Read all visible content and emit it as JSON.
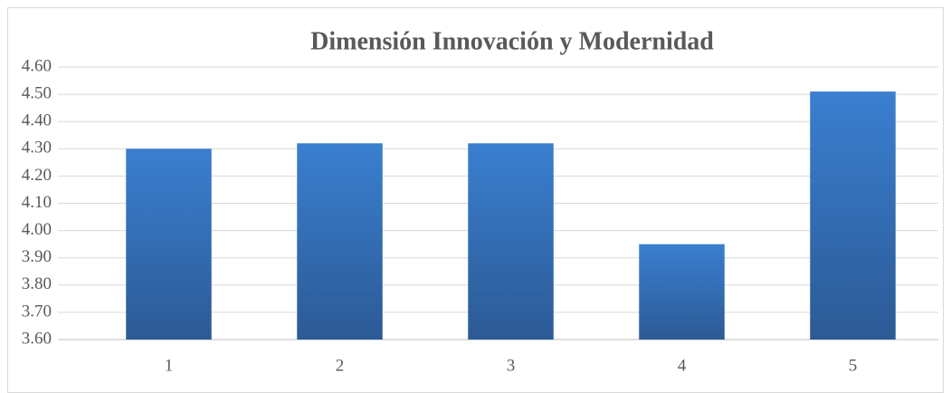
{
  "chart_data": {
    "type": "bar",
    "title": "Dimensión Innovación y Modernidad",
    "categories": [
      "1",
      "2",
      "3",
      "4",
      "5"
    ],
    "values": [
      4.3,
      4.32,
      4.32,
      3.95,
      4.51
    ],
    "color": "#3a7fd0",
    "ylim": [
      3.6,
      4.6
    ],
    "yticks": [
      {
        "value": 3.6,
        "label": "3.60"
      },
      {
        "value": 3.7,
        "label": "3.70"
      },
      {
        "value": 3.8,
        "label": "3.80"
      },
      {
        "value": 3.9,
        "label": "3.90"
      },
      {
        "value": 4.0,
        "label": "4.00"
      },
      {
        "value": 4.1,
        "label": "4.10"
      },
      {
        "value": 4.2,
        "label": "4.20"
      },
      {
        "value": 4.3,
        "label": "4.30"
      },
      {
        "value": 4.4,
        "label": "4.40"
      },
      {
        "value": 4.5,
        "label": "4.50"
      },
      {
        "value": 4.6,
        "label": "4.60"
      }
    ],
    "grid": true
  }
}
